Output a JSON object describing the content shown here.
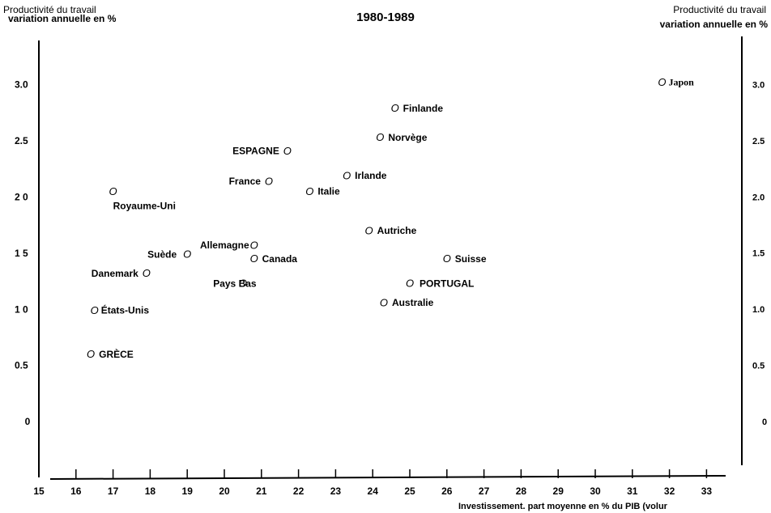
{
  "chart_data": {
    "type": "scatter",
    "title": "1980-1989",
    "y_label_line1": "Productivité du travail",
    "y_label_line2": "variation annuelle en %",
    "y2_label_line1": "Productivité du travail",
    "y2_label_line2": "variation annuelle en %",
    "x_label": "Investissement. part moyenne en % du PIB (volur",
    "marker": "O",
    "point_labels": [
      "Japon",
      "Finlande",
      "Norvège",
      "ESPAGNE",
      "Irlande",
      "France",
      "Italie",
      "Royaume-Uni",
      "Autriche",
      "Allemagne",
      "Suède",
      "Canada",
      "Suisse",
      "Danemark",
      "Pays Bas",
      "PORTUGAL",
      "Australie",
      "États-Unis",
      "GRÈCE"
    ],
    "x": [
      31.8,
      24.6,
      24.2,
      21.7,
      23.3,
      21.2,
      22.3,
      17.0,
      23.9,
      20.8,
      19.0,
      20.8,
      26.0,
      17.9,
      20.5,
      25.0,
      24.3,
      16.5,
      16.4
    ],
    "values": [
      3.02,
      2.79,
      2.53,
      2.41,
      2.19,
      2.14,
      2.05,
      2.05,
      1.7,
      1.57,
      1.49,
      1.45,
      1.45,
      1.32,
      1.23,
      1.23,
      1.06,
      0.99,
      0.6
    ],
    "color": "#000000",
    "xlim": [
      15,
      33.5
    ],
    "xticks": [
      15,
      16,
      17,
      18,
      19,
      20,
      21,
      22,
      23,
      24,
      25,
      26,
      27,
      28,
      29,
      30,
      31,
      32,
      33
    ],
    "ylim": [
      -0.49,
      3.4
    ],
    "yticks": [
      0,
      {
        "value": 0.5,
        "label": "0.5"
      },
      {
        "value": 1,
        "label": "1 0"
      },
      {
        "value": 1.5,
        "label": "1 5"
      },
      {
        "value": 2,
        "label": "2 0"
      },
      {
        "value": 2.5,
        "label": "2.5"
      },
      {
        "value": 3,
        "label": "3.0"
      }
    ],
    "y2lim": [
      -0.49,
      3.4
    ],
    "y2ticks": [
      0,
      {
        "value": 0.5,
        "label": "0.5"
      },
      {
        "value": 1,
        "label": "1.0"
      },
      {
        "value": 1.5,
        "label": "1.5"
      },
      {
        "value": 2,
        "label": "2.0"
      },
      {
        "value": 2.5,
        "label": "2.5"
      },
      {
        "value": 3,
        "label": "3.0"
      }
    ]
  }
}
